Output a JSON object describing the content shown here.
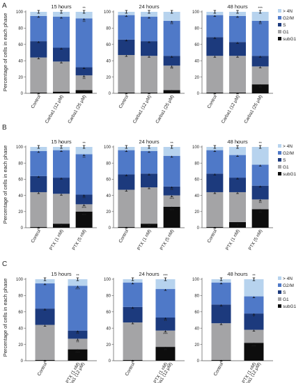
{
  "figure": {
    "ylabel": "Percentage of cells in each phase",
    "yticks": [
      0,
      20,
      40,
      60,
      80,
      100
    ],
    "phases": [
      ">4N",
      "G2/M",
      "S",
      "G1",
      "subG1"
    ],
    "colors": {
      ">4N": "#b7d3ee",
      "G2/M": "#4f79c8",
      "S": "#1c3a7d",
      "G1": "#a4a4a6",
      "subG1": "#0d0d0d"
    },
    "legend": {
      "entries": [
        {
          "marker": "▫",
          "label": "> 4N"
        },
        {
          "marker": "▫",
          "label": "G2/M"
        },
        {
          "marker": "▪",
          "label": "S"
        },
        {
          "marker": "▫",
          "label": "G1"
        },
        {
          "marker": "▪",
          "label": "subG1"
        }
      ]
    }
  },
  "chart_data": [
    {
      "type": "bar",
      "stacked": true,
      "panel": "A",
      "title": "15 hours",
      "ylim": [
        0,
        100
      ],
      "categories": [
        "Control",
        "Carba1 (12 μM)",
        "Carba1 (25 μM)"
      ],
      "series": [
        {
          "name": "subG1",
          "values": [
            1,
            2,
            4
          ]
        },
        {
          "name": "G1",
          "values": [
            43,
            37,
            18
          ]
        },
        {
          "name": "S",
          "values": [
            20,
            17,
            10
          ]
        },
        {
          "name": "G2/M",
          "values": [
            31,
            38,
            60
          ]
        },
        {
          "name": ">4N",
          "values": [
            5,
            6,
            8
          ]
        }
      ],
      "annotations": [
        [],
        [
          "*",
          "",
          "",
          "",
          "*"
        ],
        [
          "*",
          "**",
          "",
          "**",
          "**"
        ]
      ]
    },
    {
      "type": "bar",
      "stacked": true,
      "panel": "A",
      "title": "24 hours",
      "ylim": [
        0,
        100
      ],
      "categories": [
        "Control",
        "Carba1 (12 μM)",
        "Carba1 (25 μM)"
      ],
      "series": [
        {
          "name": "subG1",
          "values": [
            1,
            1,
            4
          ]
        },
        {
          "name": "G1",
          "values": [
            46,
            45,
            30
          ]
        },
        {
          "name": "S",
          "values": [
            19,
            18,
            12
          ]
        },
        {
          "name": "G2/M",
          "values": [
            30,
            30,
            43
          ]
        },
        {
          "name": ">4N",
          "values": [
            4,
            6,
            11
          ]
        }
      ],
      "annotations": [
        [],
        [],
        [
          "*",
          "**",
          "",
          "**",
          ""
        ]
      ]
    },
    {
      "type": "bar",
      "stacked": true,
      "panel": "A",
      "title": "48 hours",
      "ylim": [
        0,
        100
      ],
      "categories": [
        "Control",
        "Carba1 (12 μM)",
        "Carba1 (25 μM)"
      ],
      "series": [
        {
          "name": "subG1",
          "values": [
            1,
            1,
            11
          ]
        },
        {
          "name": "G1",
          "values": [
            45,
            45,
            22
          ]
        },
        {
          "name": "S",
          "values": [
            23,
            17,
            13
          ]
        },
        {
          "name": "G2/M",
          "values": [
            27,
            32,
            43
          ]
        },
        {
          "name": ">4N",
          "values": [
            4,
            5,
            11
          ]
        }
      ],
      "annotations": [
        [],
        [],
        [
          "**",
          "",
          "",
          "**",
          "***"
        ]
      ]
    },
    {
      "type": "bar",
      "stacked": true,
      "panel": "B",
      "title": "15 hours",
      "ylim": [
        0,
        100
      ],
      "categories": [
        "Control",
        "PTX (1 nM)",
        "PTX (5 nM)"
      ],
      "series": [
        {
          "name": "subG1",
          "values": [
            1,
            5,
            20
          ]
        },
        {
          "name": "G1",
          "values": [
            43,
            37,
            9
          ]
        },
        {
          "name": "S",
          "values": [
            20,
            20,
            12
          ]
        },
        {
          "name": "G2/M",
          "values": [
            31,
            34,
            50
          ]
        },
        {
          "name": ">4N",
          "values": [
            5,
            4,
            9
          ]
        }
      ],
      "annotations": [
        [],
        [
          "*",
          "",
          "",
          "",
          "*"
        ],
        [
          "***",
          "***",
          "**",
          "**",
          "**"
        ]
      ]
    },
    {
      "type": "bar",
      "stacked": true,
      "panel": "B",
      "title": "24 hours",
      "ylim": [
        0,
        100
      ],
      "categories": [
        "Control",
        "PTX (1 nM)",
        "PTX (5 nM)"
      ],
      "series": [
        {
          "name": "subG1",
          "values": [
            1,
            5,
            26
          ]
        },
        {
          "name": "G1",
          "values": [
            46,
            45,
            14
          ]
        },
        {
          "name": "S",
          "values": [
            19,
            17,
            11
          ]
        },
        {
          "name": "G2/M",
          "values": [
            30,
            28,
            38
          ]
        },
        {
          "name": ">4N",
          "values": [
            4,
            5,
            11
          ]
        }
      ],
      "annotations": [
        [],
        [
          "**",
          "",
          "",
          "",
          ""
        ],
        [
          "***",
          "***",
          "**",
          "",
          "**"
        ]
      ]
    },
    {
      "type": "bar",
      "stacked": true,
      "panel": "B",
      "title": "48 hours",
      "ylim": [
        0,
        100
      ],
      "categories": [
        "Control",
        "PTX (1 nM)",
        "PTX (5 nM)"
      ],
      "series": [
        {
          "name": "subG1",
          "values": [
            1,
            7,
            23
          ]
        },
        {
          "name": "G1",
          "values": [
            43,
            37,
            12
          ]
        },
        {
          "name": "S",
          "values": [
            23,
            18,
            17
          ]
        },
        {
          "name": "G2/M",
          "values": [
            29,
            28,
            26
          ]
        },
        {
          "name": ">4N",
          "values": [
            4,
            10,
            22
          ]
        }
      ],
      "annotations": [
        [],
        [
          "*",
          "",
          "",
          "",
          "*"
        ],
        [
          "**",
          "**",
          "",
          "",
          "**"
        ]
      ]
    },
    {
      "type": "bar",
      "stacked": true,
      "panel": "C",
      "title": "15 hours",
      "ylim": [
        0,
        100
      ],
      "categories": [
        "Control",
        "PTX (1 nM) + Carba1 (12 μM)"
      ],
      "series": [
        {
          "name": "subG1",
          "values": [
            1,
            14
          ]
        },
        {
          "name": "G1",
          "values": [
            43,
            13
          ]
        },
        {
          "name": "S",
          "values": [
            20,
            10
          ]
        },
        {
          "name": "G2/M",
          "values": [
            31,
            55
          ]
        },
        {
          "name": ">4N",
          "values": [
            5,
            8
          ]
        }
      ],
      "annotations": [
        [],
        [
          "***",
          "**",
          "**",
          "***",
          "**"
        ]
      ]
    },
    {
      "type": "bar",
      "stacked": true,
      "panel": "C",
      "title": "24 hours",
      "ylim": [
        0,
        100
      ],
      "categories": [
        "Control",
        "PTX (1 nM) + Carba1 (12 μM)"
      ],
      "series": [
        {
          "name": "subG1",
          "values": [
            1,
            17
          ]
        },
        {
          "name": "G1",
          "values": [
            46,
            20
          ]
        },
        {
          "name": "S",
          "values": [
            19,
            16
          ]
        },
        {
          "name": "G2/M",
          "values": [
            30,
            35
          ]
        },
        {
          "name": ">4N",
          "values": [
            4,
            12
          ]
        }
      ],
      "annotations": [
        [],
        [
          "**",
          "***",
          "**",
          "",
          "***"
        ]
      ]
    },
    {
      "type": "bar",
      "stacked": true,
      "panel": "C",
      "title": "48 hours",
      "ylim": [
        0,
        100
      ],
      "categories": [
        "Control",
        "PTX (1 nM) + Carba1 (12 μM)"
      ],
      "series": [
        {
          "name": "subG1",
          "values": [
            1,
            22
          ]
        },
        {
          "name": "G1",
          "values": [
            45,
            16
          ]
        },
        {
          "name": "S",
          "values": [
            23,
            20
          ]
        },
        {
          "name": "G2/M",
          "values": [
            27,
            21
          ]
        },
        {
          "name": ">4N",
          "values": [
            4,
            21
          ]
        }
      ],
      "annotations": [
        [],
        [
          "***",
          "",
          "*",
          "",
          "**"
        ]
      ]
    }
  ]
}
